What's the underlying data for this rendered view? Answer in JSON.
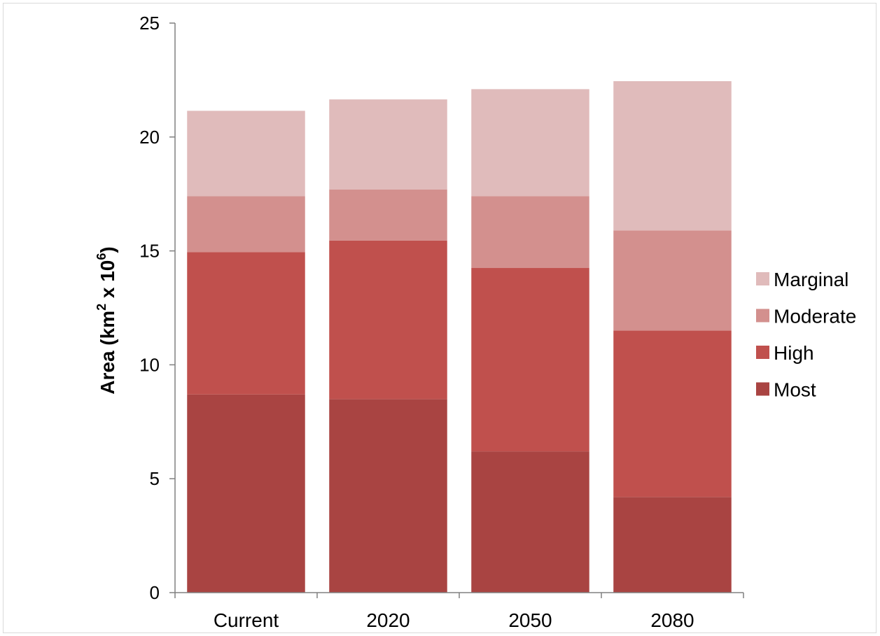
{
  "chart_data": {
    "type": "bar",
    "stacked": true,
    "categories": [
      "Current",
      "2020",
      "2050",
      "2080"
    ],
    "series": [
      {
        "name": "Most",
        "values": [
          8.7,
          8.5,
          6.2,
          4.2
        ],
        "color": "#a94442"
      },
      {
        "name": "High",
        "values": [
          6.25,
          6.95,
          8.05,
          7.3
        ],
        "color": "#c0504d"
      },
      {
        "name": "Moderate",
        "values": [
          2.45,
          2.25,
          3.15,
          4.4
        ],
        "color": "#d3908e"
      },
      {
        "name": "Marginal",
        "values": [
          3.75,
          3.95,
          4.7,
          6.55
        ],
        "color": "#e0bbbb"
      }
    ],
    "ylabel": {
      "main": "Area (km",
      "sup1": "2",
      "mid": " x 10",
      "sup2": "6",
      "end": ")"
    },
    "ylim": [
      0,
      25
    ],
    "yticks": [
      0,
      5,
      10,
      15,
      20,
      25
    ],
    "legend_position": "right",
    "grid": false
  }
}
